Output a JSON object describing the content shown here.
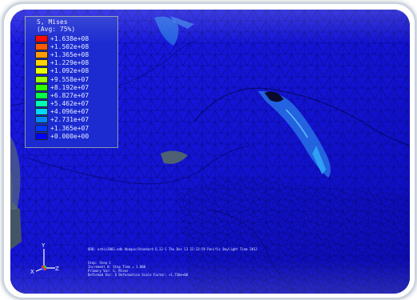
{
  "legend": {
    "title_line1": "S, Mises",
    "title_line2": "(Avg: 75%)",
    "rows": [
      {
        "label": "+1.638e+08",
        "color": "#ff0000"
      },
      {
        "label": "+1.502e+08",
        "color": "#ff5a00"
      },
      {
        "label": "+1.365e+08",
        "color": "#ff9a00"
      },
      {
        "label": "+1.229e+08",
        "color": "#ffd200"
      },
      {
        "label": "+1.092e+08",
        "color": "#e8ff00"
      },
      {
        "label": "+9.558e+07",
        "color": "#9cff00"
      },
      {
        "label": "+8.192e+07",
        "color": "#2eff00"
      },
      {
        "label": "+6.827e+07",
        "color": "#00ff4a"
      },
      {
        "label": "+5.462e+07",
        "color": "#00ffb4"
      },
      {
        "label": "+4.096e+07",
        "color": "#00d8ff"
      },
      {
        "label": "+2.731e+07",
        "color": "#0086ff"
      },
      {
        "label": "+1.365e+07",
        "color": "#0036ff"
      },
      {
        "label": "+0.000e+00",
        "color": "#0000ff"
      }
    ]
  },
  "triad": {
    "x": "X",
    "y": "Y",
    "z": "Z"
  },
  "status": {
    "odb": "ODB: arbic2003.odb   Abaqus/Standard 6.12-1   Thu Dec 13 22:13:59 Pacific Daylight Time 2012",
    "step": "Step: Step-1",
    "increment": "Increment    8: Step Time =    1.000",
    "primary": "Primary Var: S, Mises",
    "deformed": "Deformed Var: U   Deformation Scale Factor: +1.710e+00"
  },
  "colors": {
    "mesh_fill": "#1414d8",
    "mesh_edge": "#050560",
    "background": "#3a4a5c"
  }
}
